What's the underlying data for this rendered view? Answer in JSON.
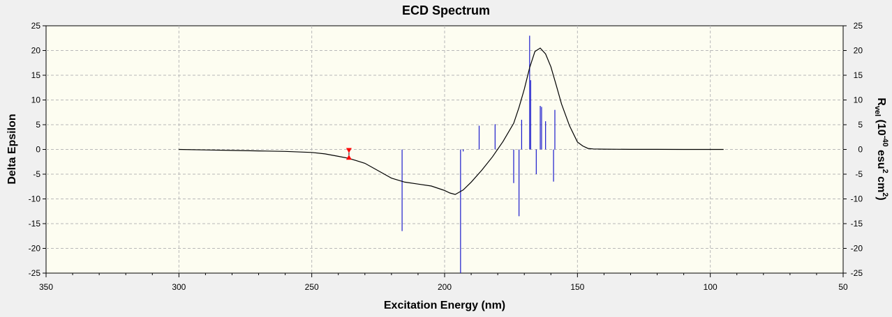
{
  "chart_data": {
    "type": "line",
    "title": "ECD Spectrum",
    "xlabel": "Excitation Energy (nm)",
    "ylabel": "Delta Epsilon",
    "y2label": {
      "base": "R",
      "sub": "vel",
      "mid": " (10",
      "sup": "-40",
      "unit1": " esu",
      "sup2": "2",
      "unit2": " cm",
      "sup3": "2",
      "end": ")"
    },
    "xlim": [
      350,
      50
    ],
    "ylim": [
      -25,
      25
    ],
    "y2lim": [
      -25,
      25
    ],
    "x_ticks": [
      350,
      300,
      250,
      200,
      150,
      100,
      50
    ],
    "y_ticks": [
      -25,
      -20,
      -15,
      -10,
      -5,
      0,
      5,
      10,
      15,
      20,
      25
    ],
    "grid": true,
    "series": [
      {
        "name": "spectrum",
        "color": "#000000",
        "x": [
          300,
          290,
          280,
          270,
          260,
          250,
          245,
          240,
          236,
          230,
          225,
          220,
          215,
          210,
          205,
          200,
          198,
          196,
          193,
          190,
          186,
          182,
          178,
          174,
          172,
          170,
          168,
          166,
          164,
          162,
          160,
          158,
          156,
          153,
          150,
          148,
          146,
          144,
          140,
          130,
          120,
          110,
          95
        ],
        "y": [
          0,
          -0.1,
          -0.2,
          -0.3,
          -0.4,
          -0.6,
          -0.9,
          -1.4,
          -1.8,
          -2.8,
          -4.3,
          -5.8,
          -6.6,
          -7.0,
          -7.4,
          -8.3,
          -8.8,
          -9.1,
          -8.2,
          -6.6,
          -4.2,
          -1.5,
          1.6,
          5.3,
          8.5,
          12.2,
          16.5,
          19.8,
          20.5,
          19.3,
          16.7,
          13.0,
          9.2,
          4.8,
          1.5,
          0.7,
          0.2,
          0.1,
          0.05,
          0.02,
          0.01,
          0.0,
          0.0
        ]
      }
    ],
    "sticks": {
      "name": "Rvel",
      "color": "#1a1acc",
      "x": [
        216,
        194,
        193,
        187,
        181,
        174,
        172,
        171,
        168,
        167.6,
        165.5,
        164,
        163.5,
        162,
        159,
        158.5
      ],
      "y": [
        -16.5,
        -25,
        -0.4,
        4.8,
        5.1,
        -6.8,
        -13.5,
        6.0,
        23.0,
        14.0,
        -5.0,
        8.8,
        8.6,
        5.7,
        -6.5,
        8.0
      ]
    },
    "marker": {
      "x": 236,
      "y_top": 0.0,
      "y_bottom": -1.8,
      "color": "#ff0000"
    }
  }
}
